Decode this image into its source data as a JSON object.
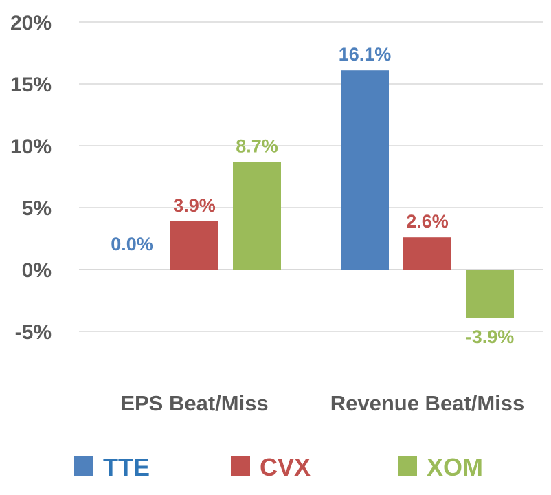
{
  "chart_data": {
    "type": "bar",
    "categories": [
      "EPS Beat/Miss",
      "Revenue Beat/Miss"
    ],
    "series": [
      {
        "name": "TTE",
        "values": [
          0.0,
          16.1
        ],
        "labels": [
          "0.0%",
          "16.1%"
        ],
        "color": "#4f81bd"
      },
      {
        "name": "CVX",
        "values": [
          3.9,
          2.6
        ],
        "labels": [
          "3.9%",
          "2.6%"
        ],
        "color": "#c0504d"
      },
      {
        "name": "XOM",
        "values": [
          8.7,
          -3.9
        ],
        "labels": [
          "8.7%",
          "-3.9%"
        ],
        "color": "#9bbb59"
      }
    ],
    "y_ticks": [
      "20%",
      "15%",
      "10%",
      "5%",
      "0%",
      "-5%"
    ],
    "y_tick_values": [
      20,
      15,
      10,
      5,
      0,
      -5
    ],
    "ylim": [
      -5,
      20
    ],
    "grid": true,
    "legend_position": "bottom"
  },
  "colors": {
    "tick_text": "#595959",
    "gridline": "#d9d9d9",
    "tte_label": "#4f81bd",
    "cvx_label": "#c0504d",
    "xom_label": "#9bbb59",
    "legend_tte_text": "#2e75b6"
  }
}
